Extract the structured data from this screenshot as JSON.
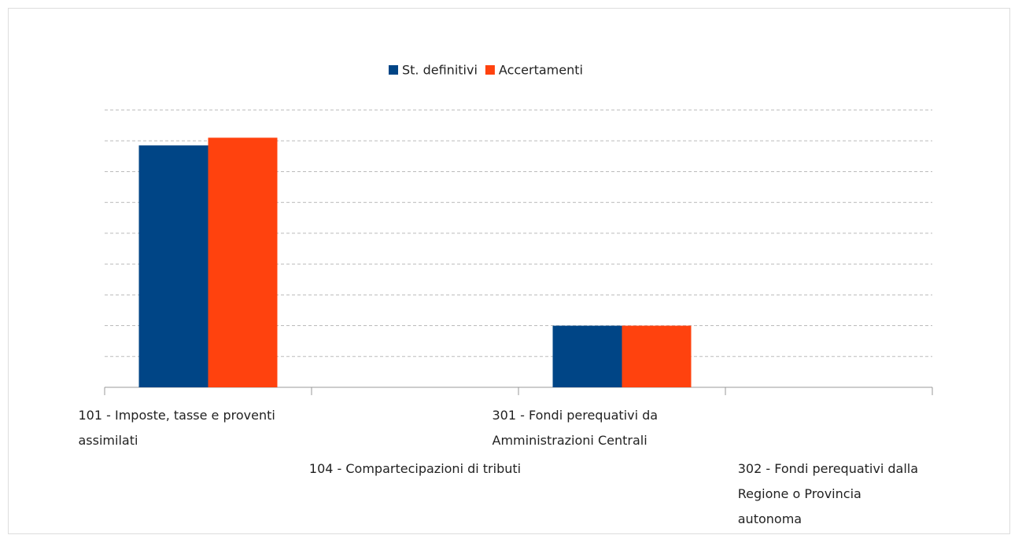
{
  "chart_data": {
    "type": "bar",
    "categories": [
      "101 - Imposte, tasse e proventi assimilati",
      "104 - Compartecipazioni di tributi",
      "301 - Fondi perequativi da Amministrazioni Centrali",
      "302 - Fondi perequativi dalla Regione o Provincia autonoma"
    ],
    "series": [
      {
        "name": "St. definitivi",
        "color": "#004586",
        "values": [
          7.85,
          0,
          2,
          0
        ]
      },
      {
        "name": "Accertamenti",
        "color": "#ff420e",
        "values": [
          8.1,
          0,
          2,
          0
        ]
      }
    ],
    "ylim": [
      0,
      9
    ],
    "yticks": [
      0,
      1,
      2,
      3,
      4,
      5,
      6,
      7,
      8,
      9
    ],
    "grid": true,
    "legend": "top"
  }
}
